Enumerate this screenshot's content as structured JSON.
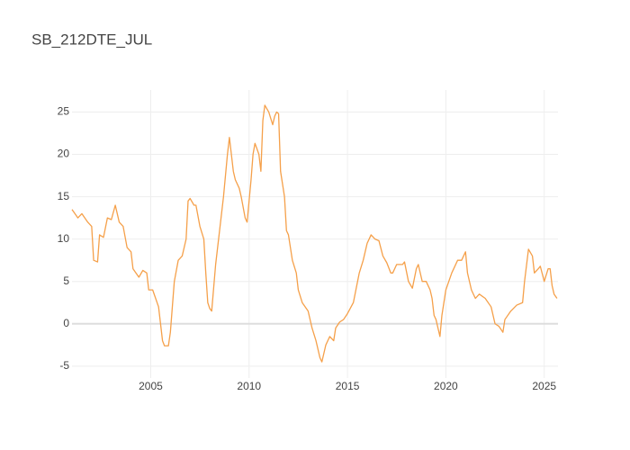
{
  "chart_data": {
    "type": "line",
    "title": "SB_212DTE_JUL",
    "color": "#f5a04a",
    "grid": true,
    "zeroline": true,
    "xlim": [
      2001.0,
      2025.7
    ],
    "xticks": [
      2005,
      2010,
      2015,
      2020,
      2025
    ],
    "ylim": [
      -6.4,
      27.6
    ],
    "yticks": [
      -5,
      0,
      5,
      10,
      15,
      20,
      25
    ],
    "x": [
      2001.0,
      2001.3,
      2001.5,
      2001.8,
      2002.0,
      2002.1,
      2002.3,
      2002.4,
      2002.6,
      2002.8,
      2003.0,
      2003.2,
      2003.4,
      2003.6,
      2003.8,
      2004.0,
      2004.1,
      2004.4,
      2004.6,
      2004.8,
      2004.9,
      2005.1,
      2005.4,
      2005.5,
      2005.6,
      2005.7,
      2005.9,
      2006.0,
      2006.2,
      2006.4,
      2006.6,
      2006.8,
      2006.9,
      2007.0,
      2007.2,
      2007.3,
      2007.5,
      2007.7,
      2007.8,
      2007.9,
      2008.0,
      2008.1,
      2008.3,
      2008.5,
      2008.7,
      2008.9,
      2009.0,
      2009.2,
      2009.3,
      2009.5,
      2009.6,
      2009.8,
      2009.9,
      2010.1,
      2010.2,
      2010.3,
      2010.5,
      2010.6,
      2010.7,
      2010.8,
      2011.0,
      2011.2,
      2011.3,
      2011.4,
      2011.5,
      2011.6,
      2011.8,
      2011.9,
      2012.0,
      2012.2,
      2012.4,
      2012.5,
      2012.7,
      2013.0,
      2013.2,
      2013.4,
      2013.6,
      2013.7,
      2013.9,
      2014.1,
      2014.3,
      2014.4,
      2014.6,
      2014.8,
      2015.0,
      2015.3,
      2015.6,
      2015.8,
      2016.0,
      2016.2,
      2016.4,
      2016.6,
      2016.8,
      2017.0,
      2017.2,
      2017.3,
      2017.5,
      2017.8,
      2017.9,
      2018.1,
      2018.3,
      2018.5,
      2018.6,
      2018.8,
      2019.0,
      2019.2,
      2019.3,
      2019.4,
      2019.5,
      2019.6,
      2019.7,
      2019.8,
      2020.0,
      2020.3,
      2020.6,
      2020.8,
      2021.0,
      2021.1,
      2021.3,
      2021.5,
      2021.7,
      2022.0,
      2022.3,
      2022.5,
      2022.7,
      2022.9,
      2023.0,
      2023.3,
      2023.6,
      2023.9,
      2024.0,
      2024.2,
      2024.4,
      2024.5,
      2024.7,
      2024.8,
      2025.0,
      2025.2,
      2025.3,
      2025.4,
      2025.5,
      2025.65
    ],
    "values": [
      13.5,
      12.5,
      13,
      12,
      11.5,
      7.5,
      7.3,
      10.5,
      10.2,
      12.5,
      12.3,
      14,
      12,
      11.5,
      9,
      8.5,
      6.5,
      5.5,
      6.3,
      6,
      4,
      4,
      2,
      0,
      -2,
      -2.6,
      -2.6,
      -1,
      5,
      7.5,
      8,
      10,
      14.5,
      14.8,
      14,
      14,
      11.5,
      10,
      6,
      2.5,
      1.8,
      1.5,
      7,
      11,
      15,
      20,
      22,
      18,
      17,
      16,
      15,
      12.5,
      12,
      17,
      20,
      21.3,
      20,
      18,
      24,
      25.8,
      25,
      23.5,
      24.5,
      25,
      24.8,
      18,
      15,
      11,
      10.5,
      7.5,
      6,
      4,
      2.5,
      1.5,
      -0.5,
      -2,
      -4,
      -4.5,
      -2.5,
      -1.5,
      -2,
      -0.5,
      0.2,
      0.5,
      1.2,
      2.5,
      6,
      7.5,
      9.5,
      10.5,
      10,
      9.8,
      8,
      7.2,
      6,
      6,
      7,
      7,
      7.3,
      5,
      4.2,
      6.5,
      7,
      5,
      5,
      4,
      3,
      1,
      0.5,
      -0.5,
      -1.5,
      1,
      4,
      6,
      7.5,
      7.5,
      8.5,
      6,
      4,
      3,
      3.5,
      3,
      2,
      0,
      -0.3,
      -1,
      0.5,
      1.5,
      2.2,
      2.5,
      5,
      8.8,
      8,
      6,
      6.5,
      6.8,
      5,
      6.5,
      6.5,
      4.5,
      3.5,
      3
    ]
  }
}
